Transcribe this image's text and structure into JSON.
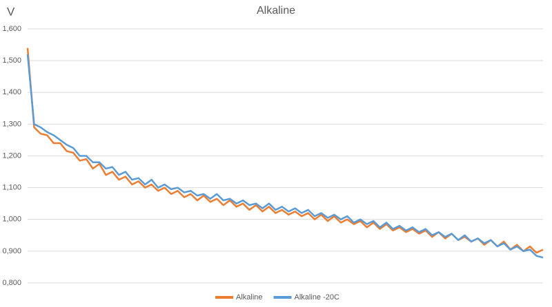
{
  "chart_data": {
    "type": "line",
    "title": "Alkaline",
    "y_label": "V",
    "categories": [
      null,
      null,
      null,
      null,
      null,
      null,
      null,
      null,
      null,
      null,
      null,
      null,
      null,
      null,
      null,
      null,
      null,
      null,
      null,
      null,
      null,
      null,
      null,
      null,
      null,
      null,
      null,
      null,
      null,
      null,
      null,
      null,
      null,
      null,
      null,
      null,
      null,
      null,
      null,
      null,
      null,
      null,
      null,
      null,
      null,
      null,
      null,
      null,
      null,
      null,
      null,
      null,
      null,
      null,
      null,
      null,
      null,
      null,
      null,
      null,
      null,
      null,
      null,
      null,
      null,
      null,
      null,
      null,
      null,
      null,
      null,
      null,
      null,
      null,
      null,
      null,
      null,
      null,
      null,
      null
    ],
    "series": [
      {
        "name": "Alkaline",
        "color": "#ed7d31",
        "values": [
          1.54,
          1.29,
          1.27,
          1.265,
          1.24,
          1.24,
          1.215,
          1.21,
          1.185,
          1.19,
          1.16,
          1.175,
          1.14,
          1.15,
          1.125,
          1.135,
          1.11,
          1.12,
          1.1,
          1.11,
          1.09,
          1.1,
          1.08,
          1.09,
          1.07,
          1.08,
          1.06,
          1.075,
          1.055,
          1.065,
          1.045,
          1.06,
          1.04,
          1.05,
          1.03,
          1.045,
          1.025,
          1.04,
          1.02,
          1.03,
          1.015,
          1.025,
          1.01,
          1.02,
          1.0,
          1.015,
          0.995,
          1.01,
          0.99,
          1.0,
          0.985,
          0.995,
          0.975,
          0.99,
          0.97,
          0.985,
          0.965,
          0.975,
          0.96,
          0.97,
          0.955,
          0.965,
          0.945,
          0.96,
          0.94,
          0.955,
          0.935,
          0.945,
          0.93,
          0.94,
          0.92,
          0.935,
          0.915,
          0.93,
          0.905,
          0.92,
          0.9,
          0.915,
          0.895,
          0.905
        ]
      },
      {
        "name": "Alkaline -20C",
        "color": "#5b9bd5",
        "values": [
          1.52,
          1.3,
          1.29,
          1.275,
          1.265,
          1.25,
          1.235,
          1.225,
          1.2,
          1.2,
          1.18,
          1.18,
          1.16,
          1.165,
          1.14,
          1.15,
          1.125,
          1.13,
          1.11,
          1.125,
          1.1,
          1.11,
          1.095,
          1.1,
          1.085,
          1.09,
          1.075,
          1.08,
          1.065,
          1.08,
          1.06,
          1.065,
          1.05,
          1.06,
          1.045,
          1.05,
          1.035,
          1.05,
          1.03,
          1.04,
          1.025,
          1.035,
          1.02,
          1.03,
          1.01,
          1.02,
          1.005,
          1.015,
          1.0,
          1.01,
          0.99,
          1.0,
          0.985,
          0.995,
          0.975,
          0.99,
          0.97,
          0.98,
          0.965,
          0.975,
          0.96,
          0.97,
          0.95,
          0.96,
          0.945,
          0.955,
          0.935,
          0.95,
          0.93,
          0.94,
          0.925,
          0.935,
          0.915,
          0.925,
          0.905,
          0.915,
          0.9,
          0.905,
          0.885,
          0.88
        ]
      }
    ],
    "ylim": [
      0.8,
      1.6
    ],
    "yticks": [
      {
        "value": 0.8,
        "label": "0,800"
      },
      {
        "value": 0.9,
        "label": "0,900"
      },
      {
        "value": 1.0,
        "label": "1,000"
      },
      {
        "value": 1.1,
        "label": "1,100"
      },
      {
        "value": 1.2,
        "label": "1,200"
      },
      {
        "value": 1.3,
        "label": "1,300"
      },
      {
        "value": 1.4,
        "label": "1,400"
      },
      {
        "value": 1.5,
        "label": "1,500"
      },
      {
        "value": 1.6,
        "label": "1,600"
      }
    ],
    "grid": true,
    "legend": "bottom"
  }
}
